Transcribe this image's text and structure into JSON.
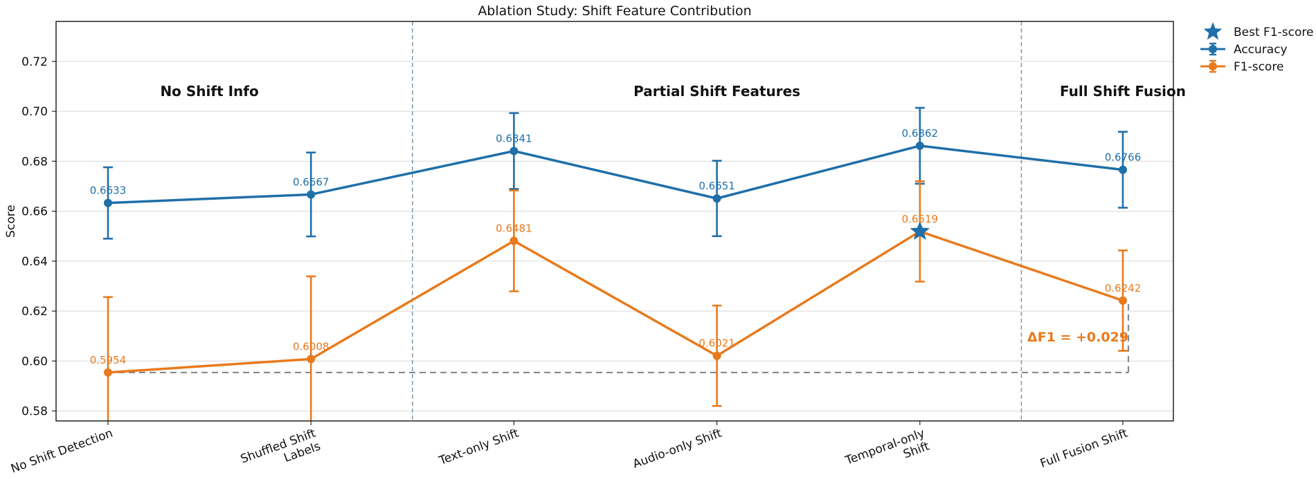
{
  "chart_data": {
    "type": "line",
    "title": "Ablation Study: Shift Feature Contribution",
    "xlabel": "",
    "ylabel": "Score",
    "ylim": [
      0.576,
      0.736
    ],
    "yticks": [
      "0.58",
      "0.60",
      "0.62",
      "0.64",
      "0.66",
      "0.68",
      "0.70",
      "0.72"
    ],
    "grid": "horizontal",
    "legend_position": "outside-top-right",
    "categories": [
      [
        "No Shift Detection"
      ],
      [
        "Shuffled Shift",
        "Labels"
      ],
      [
        "Text-only Shift"
      ],
      [
        "Audio-only Shift"
      ],
      [
        "Temporal-only",
        "Shift"
      ],
      [
        "Full Fusion Shift"
      ]
    ],
    "series": [
      {
        "name": "Accuracy",
        "color": "#1f6fa8",
        "values": [
          0.6633,
          0.6667,
          0.6841,
          0.6651,
          0.6862,
          0.6766
        ],
        "labels": [
          "0.6633",
          "0.6667",
          "0.6841",
          "0.6651",
          "0.6862",
          "0.6766"
        ],
        "errors": [
          0.0143,
          0.0168,
          0.0152,
          0.0151,
          0.0152,
          0.0152
        ]
      },
      {
        "name": "F1-score",
        "color": "#e87a1d",
        "values": [
          0.5954,
          0.6008,
          0.6481,
          0.6021,
          0.6519,
          0.6242
        ],
        "labels": [
          "0.5954",
          "0.6008",
          "0.6481",
          "0.6021",
          "0.6519",
          "0.6242"
        ],
        "errors": [
          0.0302,
          0.0331,
          0.0202,
          0.0201,
          0.0201,
          0.0201
        ]
      }
    ],
    "groups": [
      {
        "label": "No Shift Info",
        "start": 0,
        "end": 1
      },
      {
        "label": "Partial Shift Features",
        "start": 2,
        "end": 4
      },
      {
        "label": "Full Shift Fusion",
        "start": 5,
        "end": 5
      }
    ],
    "separators_after": [
      1,
      4
    ],
    "best": {
      "label": "Best F1-score",
      "index": 4,
      "value": 0.6519,
      "color": "#1f6fa8"
    },
    "baseline": {
      "value": 0.5954,
      "from_index": 0,
      "to_index": 5
    },
    "delta_annotation": {
      "text": "ΔF1 = +0.029",
      "at_index": 5,
      "value": 0.6095,
      "color": "#e87a1d"
    }
  }
}
